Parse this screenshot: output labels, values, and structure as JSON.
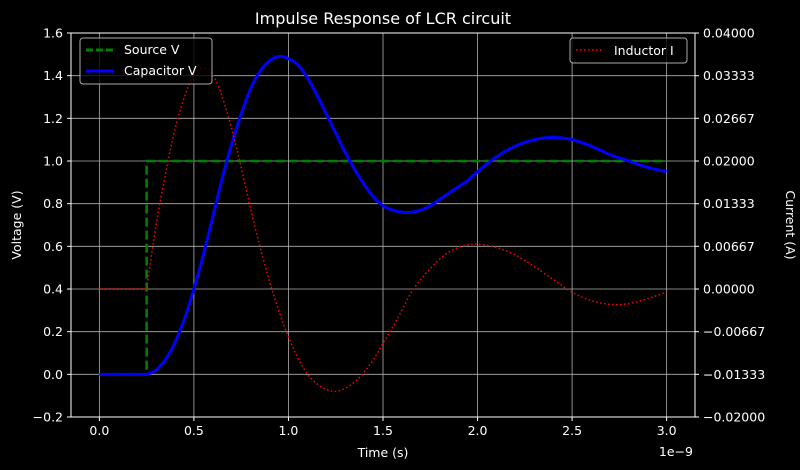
{
  "chart_data": {
    "type": "line",
    "title": "Impulse Response of LCR circuit",
    "xlabel": "Time (s)",
    "ylabel_left": "Voltage (V)",
    "ylabel_right": "Current (A)",
    "x_offset_text": "1e−9",
    "xlim": [
      -0.15,
      3.15
    ],
    "ylim_left": [
      -0.2,
      1.6
    ],
    "ylim_right": [
      -0.02,
      0.04
    ],
    "x_ticks": [
      0.0,
      0.5,
      1.0,
      1.5,
      2.0,
      2.5,
      3.0
    ],
    "x_tick_labels": [
      "0.0",
      "0.5",
      "1.0",
      "1.5",
      "2.0",
      "2.5",
      "3.0"
    ],
    "y_left_ticks": [
      -0.2,
      0.0,
      0.2,
      0.4,
      0.6,
      0.8,
      1.0,
      1.2,
      1.4,
      1.6
    ],
    "y_left_tick_labels": [
      "−0.2",
      "0.0",
      "0.2",
      "0.4",
      "0.6",
      "0.8",
      "1.0",
      "1.2",
      "1.4",
      "1.6"
    ],
    "y_right_ticks": [
      -0.02,
      -0.01333,
      -0.00667,
      0.0,
      0.00667,
      0.01333,
      0.02,
      0.02667,
      0.03333,
      0.04
    ],
    "y_right_tick_labels": [
      "−0.02000",
      "−0.01333",
      "−0.00667",
      "0.00000",
      "0.00667",
      "0.01333",
      "0.02000",
      "0.02667",
      "0.03333",
      "0.04000"
    ],
    "grid": true,
    "legend_left_position": "top-left",
    "legend_right_position": "top-right",
    "series": [
      {
        "name": "Source V",
        "axis": "left",
        "color": "#008000",
        "style": "dashed",
        "x": [
          0.0,
          0.25,
          0.25,
          3.0
        ],
        "y": [
          0.0,
          0.0,
          1.0,
          1.0
        ]
      },
      {
        "name": "Capacitor V",
        "axis": "left",
        "color": "#0000ff",
        "style": "solid",
        "x": [
          0.0,
          0.25,
          0.3,
          0.35,
          0.4,
          0.45,
          0.5,
          0.55,
          0.6,
          0.65,
          0.7,
          0.75,
          0.8,
          0.85,
          0.9,
          0.95,
          1.0,
          1.05,
          1.1,
          1.15,
          1.2,
          1.25,
          1.3,
          1.35,
          1.4,
          1.45,
          1.5,
          1.55,
          1.6,
          1.65,
          1.7,
          1.75,
          1.8,
          1.85,
          1.9,
          1.95,
          2.0,
          2.1,
          2.2,
          2.3,
          2.4,
          2.5,
          2.6,
          2.7,
          2.8,
          2.9,
          3.0
        ],
        "y": [
          0.0,
          0.0,
          0.02,
          0.07,
          0.15,
          0.26,
          0.4,
          0.56,
          0.74,
          0.92,
          1.08,
          1.22,
          1.34,
          1.42,
          1.47,
          1.49,
          1.48,
          1.45,
          1.39,
          1.31,
          1.22,
          1.13,
          1.04,
          0.96,
          0.89,
          0.83,
          0.79,
          0.77,
          0.76,
          0.76,
          0.77,
          0.79,
          0.82,
          0.85,
          0.88,
          0.91,
          0.95,
          1.02,
          1.07,
          1.1,
          1.11,
          1.1,
          1.07,
          1.03,
          1.0,
          0.97,
          0.95
        ]
      },
      {
        "name": "Inductor I",
        "axis": "right",
        "color": "#ff0000",
        "style": "dotted",
        "x": [
          0.0,
          0.25,
          0.3,
          0.35,
          0.4,
          0.45,
          0.5,
          0.55,
          0.6,
          0.65,
          0.7,
          0.75,
          0.8,
          0.85,
          0.9,
          0.95,
          1.0,
          1.05,
          1.1,
          1.15,
          1.2,
          1.25,
          1.3,
          1.35,
          1.4,
          1.45,
          1.5,
          1.55,
          1.6,
          1.65,
          1.7,
          1.75,
          1.8,
          1.85,
          1.9,
          1.95,
          2.0,
          2.1,
          2.2,
          2.3,
          2.4,
          2.5,
          2.6,
          2.7,
          2.8,
          2.9,
          3.0
        ],
        "y": [
          0.0,
          0.0,
          0.01,
          0.018,
          0.025,
          0.03,
          0.0335,
          0.0345,
          0.0335,
          0.03,
          0.025,
          0.019,
          0.0125,
          0.0065,
          0.0012,
          -0.0035,
          -0.0075,
          -0.0108,
          -0.0133,
          -0.0148,
          -0.0157,
          -0.016,
          -0.0155,
          -0.0145,
          -0.013,
          -0.011,
          -0.0085,
          -0.006,
          -0.0033,
          -0.0005,
          0.0015,
          0.0032,
          0.0047,
          0.0058,
          0.0065,
          0.0069,
          0.007,
          0.0065,
          0.0053,
          0.0035,
          0.0015,
          -0.0005,
          -0.0018,
          -0.0024,
          -0.0023,
          -0.0015,
          -0.0005
        ]
      }
    ]
  }
}
